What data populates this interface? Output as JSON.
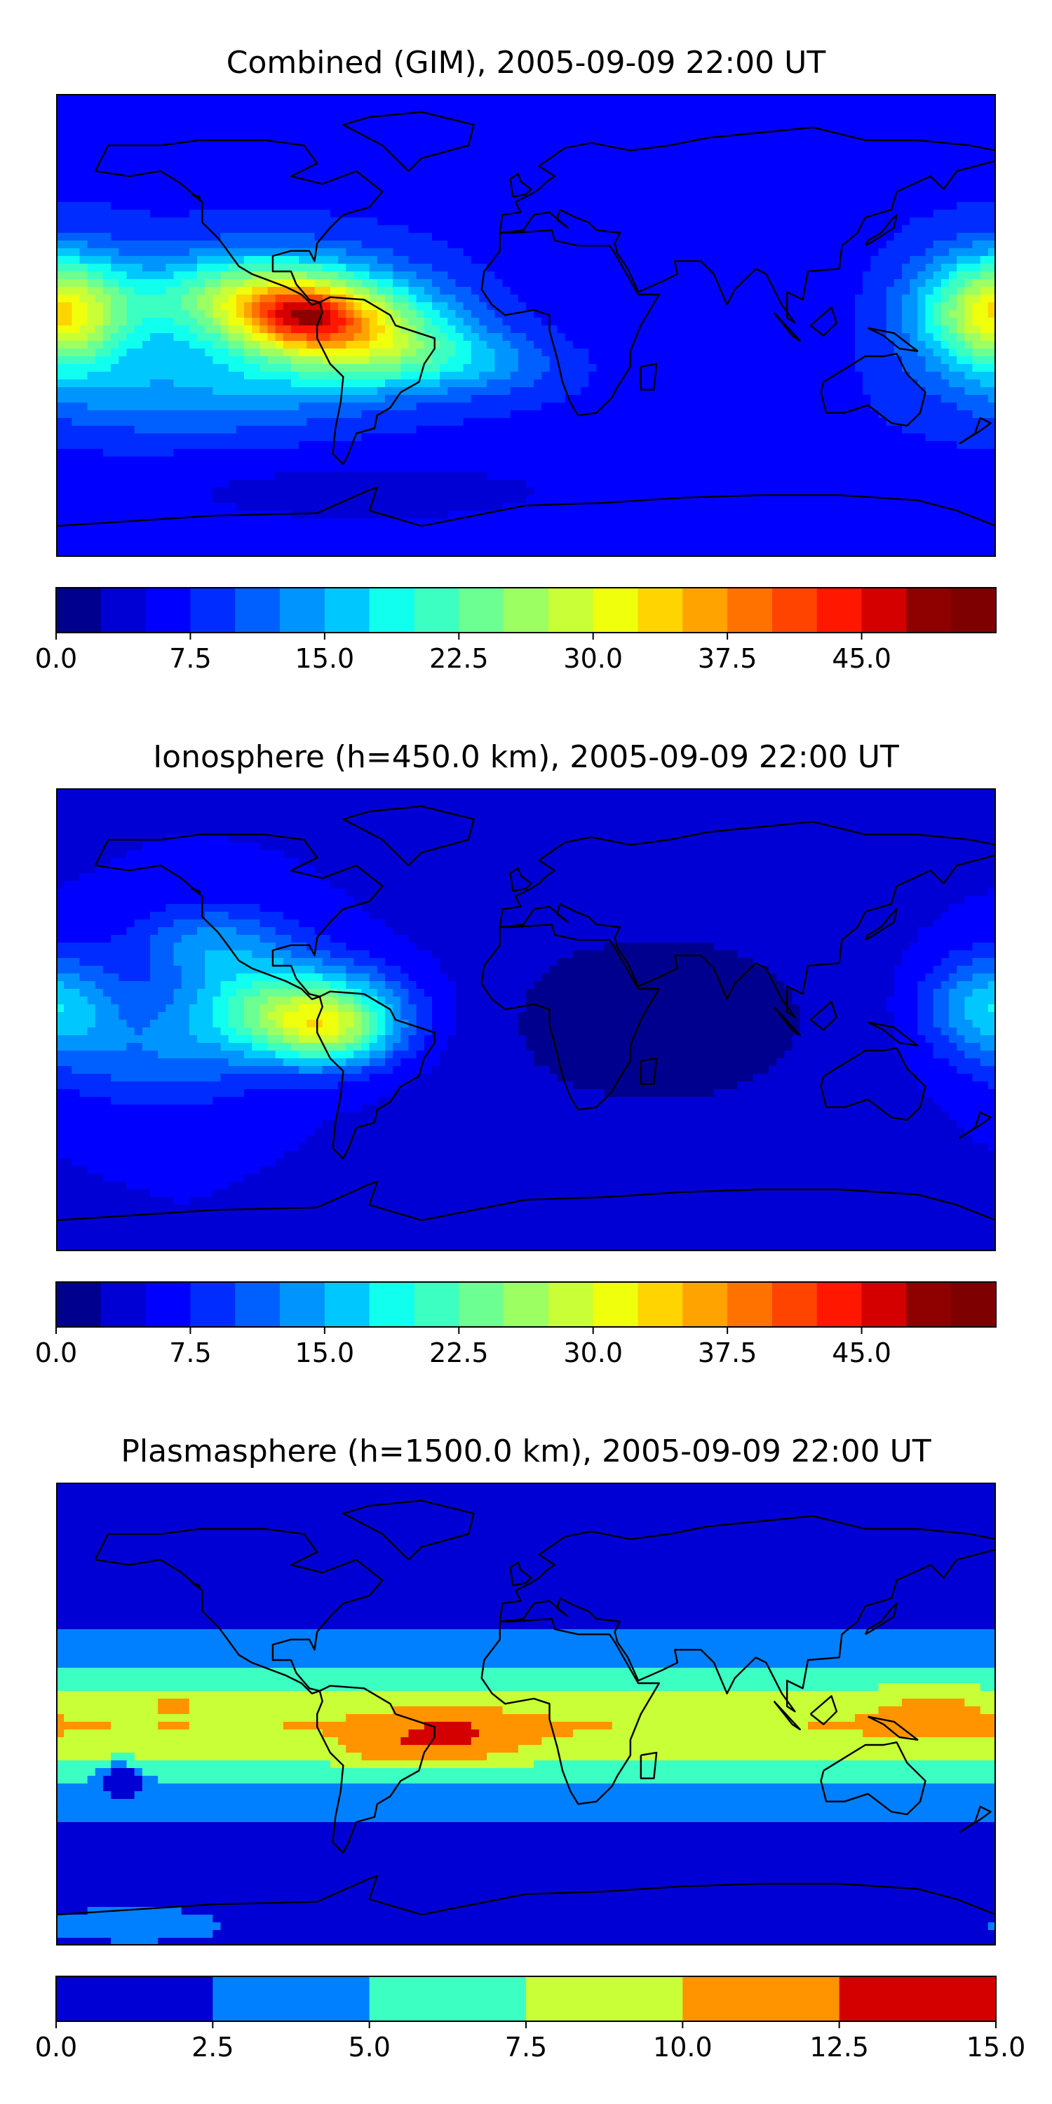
{
  "chart_data": [
    {
      "type": "heatmap",
      "title": "Combined (GIM), 2005-09-09 22:00 UT",
      "colorbar": {
        "range": [
          0,
          52.5
        ],
        "levels": [
          0,
          2.5,
          5,
          7.5,
          10,
          12.5,
          15,
          17.5,
          20,
          22.5,
          25,
          27.5,
          30,
          32.5,
          35,
          37.5,
          40,
          42.5,
          45,
          47.5,
          50,
          52.5
        ],
        "tick_values": [
          0,
          7.5,
          15,
          22.5,
          30,
          37.5,
          45
        ],
        "tick_labels": [
          "0.0",
          "7.5",
          "15.0",
          "22.5",
          "30.0",
          "37.5",
          "45.0"
        ],
        "colors": [
          "#00008f",
          "#0000d4",
          "#0000ff",
          "#002cff",
          "#0060ff",
          "#0094ff",
          "#00c8ff",
          "#10ffef",
          "#3cffc2",
          "#6cff92",
          "#9cff62",
          "#c8ff36",
          "#f0ff0c",
          "#ffd400",
          "#ffa300",
          "#ff7200",
          "#ff4400",
          "#ff1700",
          "#d40000",
          "#8f0000",
          "#7f0000"
        ]
      },
      "field": {
        "x": "longitude",
        "y": "latitude",
        "xlim": [
          -180,
          180
        ],
        "ylim": [
          -90,
          90
        ],
        "background": 7,
        "blobs": [
          {
            "lon": -100,
            "lat": 10,
            "amp": 22,
            "slon": 45,
            "slat": 18
          },
          {
            "lon": -65,
            "lat": -5,
            "amp": 20,
            "slon": 40,
            "slat": 18
          },
          {
            "lon": -85,
            "lat": 4,
            "amp": 12,
            "slon": 20,
            "slat": 10
          },
          {
            "lon": -130,
            "lat": -25,
            "amp": 7,
            "slon": 60,
            "slat": 18
          },
          {
            "lon": -20,
            "lat": -15,
            "amp": 6,
            "slon": 35,
            "slat": 12
          },
          {
            "lon": 175,
            "lat": 5,
            "amp": 14,
            "slon": 30,
            "slat": 22
          },
          {
            "lon": -175,
            "lat": 5,
            "amp": 12,
            "slon": 25,
            "slat": 22
          },
          {
            "lon": 60,
            "lat": 10,
            "amp": -2,
            "slon": 60,
            "slat": 30
          },
          {
            "lon": -60,
            "lat": -65,
            "amp": -3,
            "slon": 100,
            "slat": 15
          }
        ]
      }
    },
    {
      "type": "heatmap",
      "title": "Ionosphere  (h=450.0 km), 2005-09-09 22:00 UT",
      "colorbar": {
        "range": [
          0,
          52.5
        ],
        "levels": [
          0,
          2.5,
          5,
          7.5,
          10,
          12.5,
          15,
          17.5,
          20,
          22.5,
          25,
          27.5,
          30,
          32.5,
          35,
          37.5,
          40,
          42.5,
          45,
          47.5,
          50,
          52.5
        ],
        "tick_values": [
          0,
          7.5,
          15,
          22.5,
          30,
          37.5,
          45
        ],
        "tick_labels": [
          "0.0",
          "7.5",
          "15.0",
          "22.5",
          "30.0",
          "37.5",
          "45.0"
        ],
        "colors": [
          "#00008f",
          "#0000d4",
          "#0000ff",
          "#002cff",
          "#0060ff",
          "#0094ff",
          "#00c8ff",
          "#10ffef",
          "#3cffc2",
          "#6cff92",
          "#9cff62",
          "#c8ff36",
          "#f0ff0c",
          "#ffd400",
          "#ffa300",
          "#ff7200",
          "#ff4400",
          "#ff1700",
          "#d40000",
          "#8f0000",
          "#7f0000"
        ]
      },
      "field": {
        "x": "longitude",
        "y": "latitude",
        "xlim": [
          -180,
          180
        ],
        "ylim": [
          -90,
          90
        ],
        "background": 5,
        "blobs": [
          {
            "lon": -90,
            "lat": 5,
            "amp": 18,
            "slon": 40,
            "slat": 18
          },
          {
            "lon": -75,
            "lat": -5,
            "amp": 14,
            "slon": 25,
            "slat": 14
          },
          {
            "lon": -120,
            "lat": 30,
            "amp": 8,
            "slon": 30,
            "slat": 15
          },
          {
            "lon": -140,
            "lat": -15,
            "amp": 6,
            "slon": 40,
            "slat": 20
          },
          {
            "lon": 178,
            "lat": 5,
            "amp": 12,
            "slon": 25,
            "slat": 20
          },
          {
            "lon": 50,
            "lat": 0,
            "amp": -4,
            "slon": 80,
            "slat": 45
          }
        ]
      }
    },
    {
      "type": "heatmap",
      "title": "Plasmasphere (h=1500.0 km), 2005-09-09 22:00 UT",
      "colorbar": {
        "range": [
          0,
          15
        ],
        "levels": [
          0,
          2.5,
          5,
          7.5,
          10,
          12.5,
          15
        ],
        "tick_values": [
          0,
          2.5,
          5,
          7.5,
          10,
          12.5,
          15
        ],
        "tick_labels": [
          "0.0",
          "2.5",
          "5.0",
          "7.5",
          "10.0",
          "12.5",
          "15.0"
        ],
        "colors": [
          "#0000d4",
          "#0080ff",
          "#3cffc2",
          "#c8ff36",
          "#ff9400",
          "#d40000"
        ]
      },
      "field": {
        "x": "longitude",
        "y": "latitude",
        "xlim": [
          -180,
          180
        ],
        "ylim": [
          -90,
          90
        ],
        "background": 2,
        "band": {
          "lat": -5,
          "amp": 8,
          "slat": 22
        },
        "blobs": [
          {
            "lon": -30,
            "lat": -10,
            "amp": 3.5,
            "slon": 25,
            "slat": 12
          },
          {
            "lon": -55,
            "lat": -15,
            "amp": 2,
            "slon": 15,
            "slat": 6
          },
          {
            "lon": -135,
            "lat": 5,
            "amp": 2,
            "slon": 8,
            "slat": 4
          },
          {
            "lon": 155,
            "lat": 5,
            "amp": 2,
            "slon": 20,
            "slat": 12
          },
          {
            "lon": -155,
            "lat": -25,
            "amp": -6,
            "slon": 8,
            "slat": 6
          },
          {
            "lon": -150,
            "lat": -82,
            "amp": 3,
            "slon": 25,
            "slat": 5
          }
        ]
      }
    }
  ]
}
